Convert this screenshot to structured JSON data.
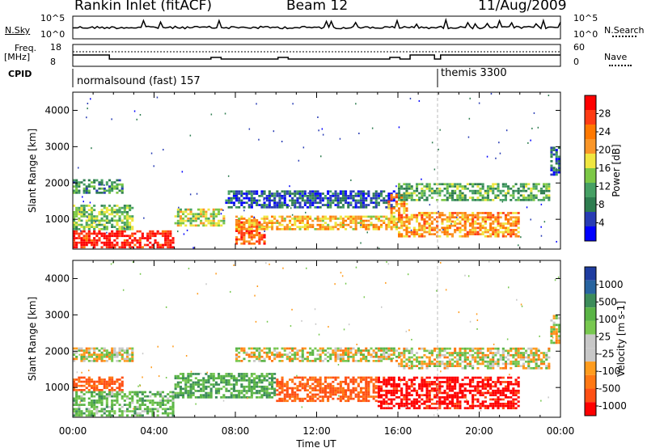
{
  "header": {
    "station": "Rankin Inlet (fitACF)",
    "beam": "Beam 12",
    "date": "11/Aug/2009"
  },
  "noise_panel": {
    "left_label": "N.Sky",
    "right_label": "N.Search",
    "left_ticks": [
      "10^5",
      "10^0"
    ],
    "right_ticks": [
      "10^5",
      "10^0"
    ]
  },
  "freq_panel": {
    "left_label_1": "Freq.",
    "left_label_2": "[MHz]",
    "right_label": "Nave",
    "left_ticks": [
      "18",
      "8"
    ],
    "right_ticks": [
      "60",
      "0"
    ]
  },
  "cpid_panel": {
    "label": "CPID",
    "modes": [
      {
        "name": "normalsound (fast) 157",
        "start_hour": 0
      },
      {
        "name": "themis 3300",
        "start_hour": 18
      }
    ]
  },
  "colors": {
    "power_scale": [
      "#0000ff",
      "#283cb4",
      "#2e7d50",
      "#46a064",
      "#7cc846",
      "#f0e640",
      "#fa9628",
      "#ff7800",
      "#ff3c14",
      "#ff0000"
    ],
    "velocity_scale": [
      "#1e3ca0",
      "#2864a0",
      "#3c8c5a",
      "#5ab446",
      "#78c850",
      "#c8c8c8",
      "#c8c8c8",
      "#ff9c1e",
      "#ff7814",
      "#ff5014",
      "#ff0000"
    ]
  },
  "chart_data": [
    {
      "type": "heatmap",
      "title": "Power",
      "ylabel": "Slant Range [km]",
      "xlabel": "",
      "xlim_hours": [
        0,
        24
      ],
      "ylim": [
        180,
        4500
      ],
      "yticks": [
        1000,
        2000,
        3000,
        4000
      ],
      "colorbar": {
        "label": "Power [dB]",
        "range": [
          0,
          32
        ],
        "ticks": [
          4,
          8,
          12,
          16,
          20,
          24,
          28
        ]
      },
      "bands": [
        {
          "start_hour": 0,
          "end_hour": 5,
          "range_min": 200,
          "range_max": 700,
          "db": 30
        },
        {
          "start_hour": 0,
          "end_hour": 3,
          "range_min": 700,
          "range_max": 1400,
          "db": 14
        },
        {
          "start_hour": 0,
          "end_hour": 2.5,
          "range_min": 1700,
          "range_max": 2100,
          "db": 10
        },
        {
          "start_hour": 5,
          "end_hour": 7.5,
          "range_min": 800,
          "range_max": 1300,
          "db": 16
        },
        {
          "start_hour": 8,
          "end_hour": 9.5,
          "range_min": 300,
          "range_max": 1000,
          "db": 26
        },
        {
          "start_hour": 7.5,
          "end_hour": 16,
          "range_min": 1300,
          "range_max": 1800,
          "db": 6
        },
        {
          "start_hour": 8,
          "end_hour": 16,
          "range_min": 700,
          "range_max": 1100,
          "db": 20
        },
        {
          "start_hour": 15.5,
          "end_hour": 16.5,
          "range_min": 900,
          "range_max": 1700,
          "db": 22
        },
        {
          "start_hour": 16,
          "end_hour": 22,
          "range_min": 500,
          "range_max": 1200,
          "db": 22
        },
        {
          "start_hour": 16,
          "end_hour": 23.5,
          "range_min": 1500,
          "range_max": 2000,
          "db": 12
        },
        {
          "start_hour": 23.5,
          "end_hour": 24,
          "range_min": 2200,
          "range_max": 3000,
          "db": 6
        }
      ]
    },
    {
      "type": "heatmap",
      "title": "Velocity",
      "ylabel": "Slant Range [km]",
      "xlabel": "Time UT",
      "xlim_hours": [
        0,
        24
      ],
      "xticks": [
        "00:00",
        "04:00",
        "08:00",
        "12:00",
        "16:00",
        "20:00",
        "00:00"
      ],
      "ylim": [
        180,
        4500
      ],
      "yticks": [
        1000,
        2000,
        3000,
        4000
      ],
      "colorbar": {
        "label": "Velocity [m s-1]",
        "ticks": [
          "1000",
          "500",
          "100",
          "25",
          "-25",
          "-100",
          "-500",
          "-1000"
        ]
      },
      "bands": [
        {
          "start_hour": 0,
          "end_hour": 5,
          "range_min": 200,
          "range_max": 900,
          "vel": 150
        },
        {
          "start_hour": 0,
          "end_hour": 2.5,
          "range_min": 900,
          "range_max": 1300,
          "vel": -300
        },
        {
          "start_hour": 0,
          "end_hour": 3,
          "range_min": 1700,
          "range_max": 2100,
          "vel": 0
        },
        {
          "start_hour": 5,
          "end_hour": 10,
          "range_min": 700,
          "range_max": 1400,
          "vel": 200
        },
        {
          "start_hour": 8,
          "end_hour": 16,
          "range_min": 1700,
          "range_max": 2100,
          "vel": 0
        },
        {
          "start_hour": 10,
          "end_hour": 15,
          "range_min": 600,
          "range_max": 1300,
          "vel": -300
        },
        {
          "start_hour": 15,
          "end_hour": 22,
          "range_min": 400,
          "range_max": 1300,
          "vel": -600
        },
        {
          "start_hour": 16,
          "end_hour": 23.5,
          "range_min": 1500,
          "range_max": 2100,
          "vel": 0
        },
        {
          "start_hour": 23.5,
          "end_hour": 24,
          "range_min": 2200,
          "range_max": 3000,
          "vel": 0
        }
      ]
    }
  ]
}
